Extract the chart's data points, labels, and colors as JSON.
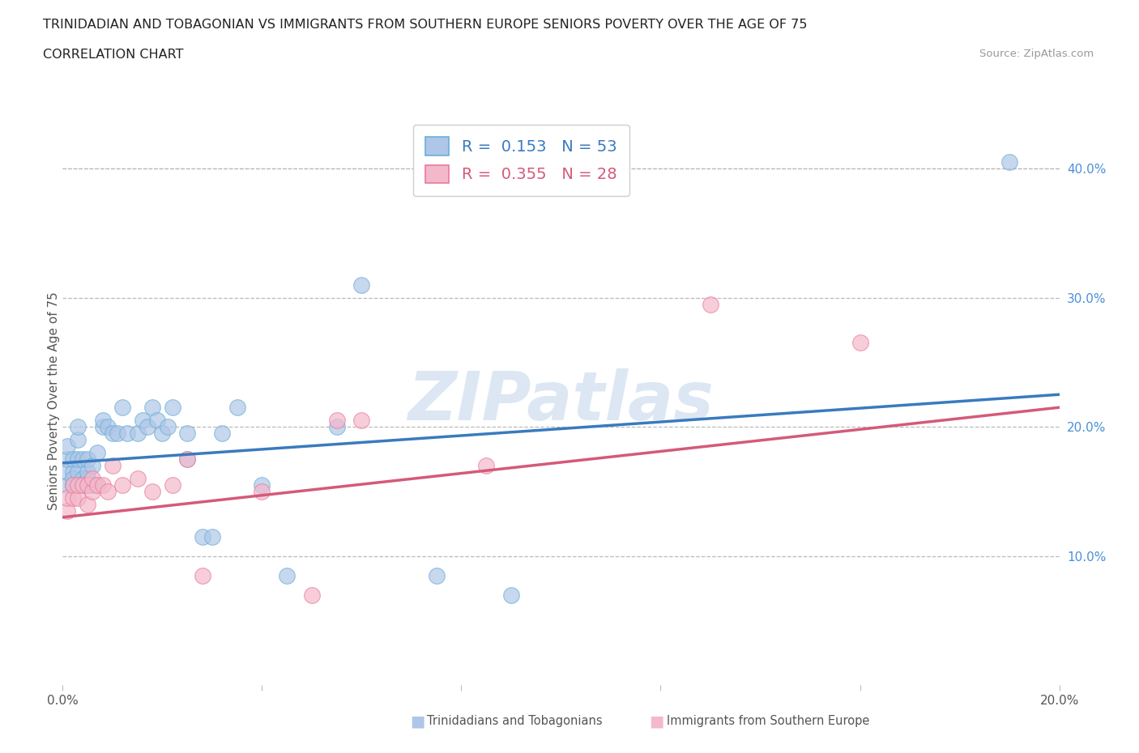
{
  "title_line1": "TRINIDADIAN AND TOBAGONIAN VS IMMIGRANTS FROM SOUTHERN EUROPE SENIORS POVERTY OVER THE AGE OF 75",
  "title_line2": "CORRELATION CHART",
  "source": "Source: ZipAtlas.com",
  "ylabel": "Seniors Poverty Over the Age of 75",
  "xlim": [
    0.0,
    0.2
  ],
  "ylim": [
    0.0,
    0.44
  ],
  "blue_color": "#aec6e8",
  "blue_edge_color": "#6aaed6",
  "pink_color": "#f4b8cb",
  "pink_edge_color": "#e87a9a",
  "blue_line_color": "#3a7abf",
  "pink_line_color": "#d45a7a",
  "blue_R": 0.153,
  "blue_N": 53,
  "pink_R": 0.355,
  "pink_N": 28,
  "legend_label_blue": "Trinidadians and Tobagonians",
  "legend_label_pink": "Immigrants from Southern Europe",
  "blue_x": [
    0.001,
    0.001,
    0.001,
    0.001,
    0.002,
    0.002,
    0.002,
    0.002,
    0.002,
    0.003,
    0.003,
    0.003,
    0.003,
    0.003,
    0.004,
    0.004,
    0.004,
    0.005,
    0.005,
    0.005,
    0.005,
    0.006,
    0.006,
    0.007,
    0.007,
    0.008,
    0.008,
    0.009,
    0.01,
    0.011,
    0.012,
    0.013,
    0.015,
    0.016,
    0.017,
    0.018,
    0.019,
    0.02,
    0.021,
    0.022,
    0.025,
    0.025,
    0.028,
    0.03,
    0.032,
    0.035,
    0.04,
    0.045,
    0.055,
    0.06,
    0.075,
    0.09,
    0.19
  ],
  "blue_y": [
    0.155,
    0.165,
    0.175,
    0.185,
    0.155,
    0.165,
    0.175,
    0.155,
    0.16,
    0.155,
    0.165,
    0.175,
    0.19,
    0.2,
    0.155,
    0.16,
    0.175,
    0.155,
    0.16,
    0.165,
    0.175,
    0.155,
    0.17,
    0.155,
    0.18,
    0.2,
    0.205,
    0.2,
    0.195,
    0.195,
    0.215,
    0.195,
    0.195,
    0.205,
    0.2,
    0.215,
    0.205,
    0.195,
    0.2,
    0.215,
    0.175,
    0.195,
    0.115,
    0.115,
    0.195,
    0.215,
    0.155,
    0.085,
    0.2,
    0.31,
    0.085,
    0.07,
    0.405
  ],
  "pink_x": [
    0.001,
    0.001,
    0.002,
    0.002,
    0.003,
    0.003,
    0.004,
    0.005,
    0.005,
    0.006,
    0.006,
    0.007,
    0.008,
    0.009,
    0.01,
    0.012,
    0.015,
    0.018,
    0.022,
    0.025,
    0.028,
    0.04,
    0.05,
    0.055,
    0.06,
    0.085,
    0.13,
    0.16
  ],
  "pink_y": [
    0.135,
    0.145,
    0.145,
    0.155,
    0.145,
    0.155,
    0.155,
    0.14,
    0.155,
    0.15,
    0.16,
    0.155,
    0.155,
    0.15,
    0.17,
    0.155,
    0.16,
    0.15,
    0.155,
    0.175,
    0.085,
    0.15,
    0.07,
    0.205,
    0.205,
    0.17,
    0.295,
    0.265
  ],
  "grid_color": "#bbbbbb",
  "grid_style": "--",
  "bg_color": "#ffffff",
  "watermark_text": "ZIPatlas",
  "watermark_color": "#c5d8ec",
  "blue_line_y0": 0.172,
  "blue_line_y1": 0.225,
  "pink_line_y0": 0.13,
  "pink_line_y1": 0.215
}
